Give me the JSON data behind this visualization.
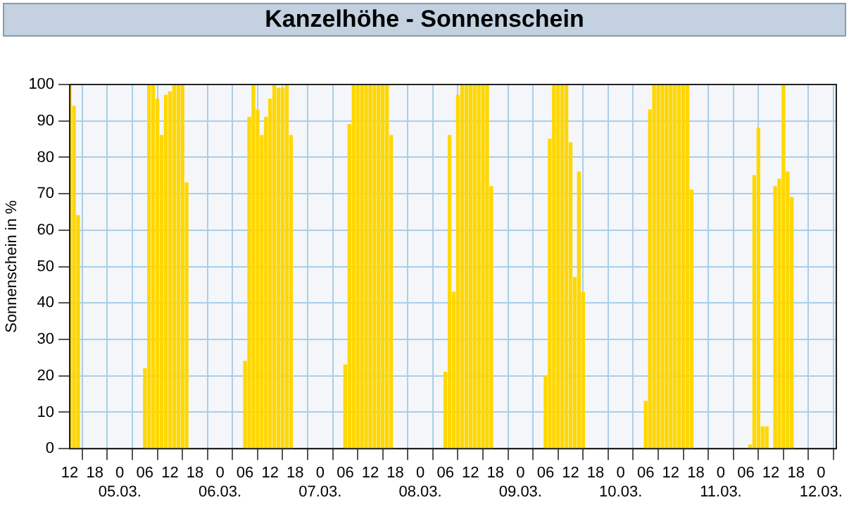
{
  "chart_data": {
    "type": "bar",
    "title": "Kanzelhöhe - Sonnenschein",
    "ylabel": "Sonnenschein in %",
    "series": [
      {
        "color": "#ffd700",
        "x": [
          "--03-04T12:00",
          "--03-04T13:00",
          "--03-04T14:00",
          "--03-05T06:00",
          "--03-05T07:00",
          "--03-05T08:00",
          "--03-05T09:00",
          "--03-05T10:00",
          "--03-05T11:00",
          "--03-05T12:00",
          "--03-05T13:00",
          "--03-05T14:00",
          "--03-05T15:00",
          "--03-05T16:00",
          "--03-06T06:00",
          "--03-06T07:00",
          "--03-06T08:00",
          "--03-06T09:00",
          "--03-06T10:00",
          "--03-06T11:00",
          "--03-06T12:00",
          "--03-06T13:00",
          "--03-06T14:00",
          "--03-06T15:00",
          "--03-06T16:00",
          "--03-06T17:00",
          "--03-07T06:00",
          "--03-07T07:00",
          "--03-07T08:00",
          "--03-07T09:00",
          "--03-07T10:00",
          "--03-07T11:00",
          "--03-07T12:00",
          "--03-07T13:00",
          "--03-07T14:00",
          "--03-07T15:00",
          "--03-07T16:00",
          "--03-07T17:00",
          "--03-08T06:00",
          "--03-08T07:00",
          "--03-08T08:00",
          "--03-08T09:00",
          "--03-08T10:00",
          "--03-08T11:00",
          "--03-08T12:00",
          "--03-08T13:00",
          "--03-08T14:00",
          "--03-08T15:00",
          "--03-08T16:00",
          "--03-08T17:00",
          "--03-09T06:00",
          "--03-09T07:00",
          "--03-09T08:00",
          "--03-09T09:00",
          "--03-09T10:00",
          "--03-09T11:00",
          "--03-09T12:00",
          "--03-09T13:00",
          "--03-09T14:00",
          "--03-09T15:00",
          "--03-10T06:00",
          "--03-10T07:00",
          "--03-10T08:00",
          "--03-10T09:00",
          "--03-10T10:00",
          "--03-10T11:00",
          "--03-10T12:00",
          "--03-10T13:00",
          "--03-10T14:00",
          "--03-10T15:00",
          "--03-10T16:00",
          "--03-10T17:00",
          "--03-11T07:00",
          "--03-11T08:00",
          "--03-11T09:00",
          "--03-11T10:00",
          "--03-11T11:00",
          "--03-11T12:00",
          "--03-11T13:00",
          "--03-11T14:00",
          "--03-11T15:00",
          "--03-11T16:00",
          "--03-11T17:00"
        ],
        "values": [
          100,
          94,
          64,
          22,
          100,
          100,
          96,
          86,
          97,
          98,
          100,
          100,
          100,
          73,
          24,
          91,
          100,
          93,
          86,
          91,
          96,
          100,
          99,
          99,
          100,
          86,
          23,
          89,
          100,
          100,
          100,
          100,
          100,
          100,
          100,
          100,
          100,
          86,
          21,
          86,
          43,
          97,
          100,
          100,
          100,
          100,
          100,
          100,
          100,
          72,
          20,
          85,
          100,
          100,
          100,
          100,
          84,
          47,
          76,
          43,
          13,
          93,
          100,
          100,
          100,
          100,
          100,
          100,
          100,
          100,
          100,
          71,
          1,
          75,
          88,
          6,
          6,
          0,
          72,
          74,
          100,
          76,
          69
        ]
      }
    ],
    "xlim": [
      "--03-04T12:00",
      "--03-12T03:40"
    ],
    "xticks": [
      {
        "value": "--03-04T12:00",
        "label": "12"
      },
      {
        "value": "--03-04T18:00",
        "label": "18"
      },
      {
        "value": "--03-05T00:00",
        "label": "0\n05.03."
      },
      {
        "value": "--03-05T06:00",
        "label": "06"
      },
      {
        "value": "--03-05T12:00",
        "label": "12"
      },
      {
        "value": "--03-05T18:00",
        "label": "18"
      },
      {
        "value": "--03-06T00:00",
        "label": "0\n06.03."
      },
      {
        "value": "--03-06T06:00",
        "label": "06"
      },
      {
        "value": "--03-06T12:00",
        "label": "12"
      },
      {
        "value": "--03-06T18:00",
        "label": "18"
      },
      {
        "value": "--03-07T00:00",
        "label": "0\n07.03."
      },
      {
        "value": "--03-07T06:00",
        "label": "06"
      },
      {
        "value": "--03-07T12:00",
        "label": "12"
      },
      {
        "value": "--03-07T18:00",
        "label": "18"
      },
      {
        "value": "--03-08T00:00",
        "label": "0\n08.03."
      },
      {
        "value": "--03-08T06:00",
        "label": "06"
      },
      {
        "value": "--03-08T12:00",
        "label": "12"
      },
      {
        "value": "--03-08T18:00",
        "label": "18"
      },
      {
        "value": "--03-09T00:00",
        "label": "0\n09.03."
      },
      {
        "value": "--03-09T06:00",
        "label": "06"
      },
      {
        "value": "--03-09T12:00",
        "label": "12"
      },
      {
        "value": "--03-09T18:00",
        "label": "18"
      },
      {
        "value": "--03-10T00:00",
        "label": "0\n10.03."
      },
      {
        "value": "--03-10T06:00",
        "label": "06"
      },
      {
        "value": "--03-10T12:00",
        "label": "12"
      },
      {
        "value": "--03-10T18:00",
        "label": "18"
      },
      {
        "value": "--03-11T00:00",
        "label": "0\n11.03."
      },
      {
        "value": "--03-11T06:00",
        "label": "06"
      },
      {
        "value": "--03-11T12:00",
        "label": "12"
      },
      {
        "value": "--03-11T18:00",
        "label": "18"
      },
      {
        "value": "--03-12T00:00",
        "label": "0\n12.03."
      }
    ],
    "ylim": [
      0,
      100
    ],
    "yticks": [
      0,
      10,
      20,
      30,
      40,
      50,
      60,
      70,
      80,
      90,
      100
    ],
    "grid": true,
    "legend": false
  }
}
